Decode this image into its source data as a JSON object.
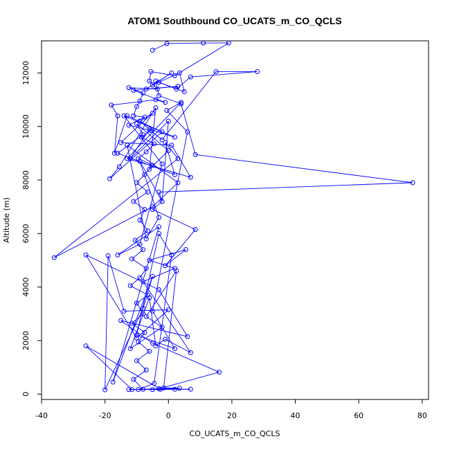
{
  "chart_data": {
    "type": "scatter",
    "title": "ATOM1 Southbound CO_UCATS_m_CO_QCLS",
    "xlabel": "CO_UCATS_m_CO_QCLS",
    "ylabel": "Altitude (m)",
    "xlim": [
      -40,
      82
    ],
    "ylim": [
      -200,
      13200
    ],
    "x_ticks": [
      -40,
      -20,
      0,
      20,
      40,
      60,
      80
    ],
    "y_ticks": [
      0,
      2000,
      4000,
      6000,
      8000,
      10000,
      12000
    ],
    "series": [
      {
        "name": "CO_UCATS_m_CO_QCLS",
        "color": "#0000ff",
        "marker": "open-circle",
        "connected": true,
        "points": [
          [
            -5,
            12850
          ],
          [
            -0.5,
            13100
          ],
          [
            11,
            13120
          ],
          [
            19,
            13120
          ],
          [
            2,
            11900
          ],
          [
            -5.5,
            12050
          ],
          [
            -6,
            11700
          ],
          [
            -3.5,
            11400
          ],
          [
            -12.5,
            11450
          ],
          [
            -8,
            11250
          ],
          [
            -9,
            10950
          ],
          [
            -10,
            10750
          ],
          [
            -11,
            10400
          ],
          [
            -7.5,
            10350
          ],
          [
            -12.5,
            10050
          ],
          [
            -5.5,
            9850
          ],
          [
            -8.5,
            9600
          ],
          [
            -4.5,
            9350
          ],
          [
            -7,
            9050
          ],
          [
            -9.5,
            8800
          ],
          [
            -5,
            8550
          ],
          [
            -7.5,
            8200
          ],
          [
            -10,
            7900
          ],
          [
            -6.5,
            7550
          ],
          [
            -11,
            7200
          ],
          [
            -7.5,
            6900
          ],
          [
            -9,
            6500
          ],
          [
            -6.5,
            6100
          ],
          [
            -10.5,
            5750
          ],
          [
            -8,
            5400
          ],
          [
            -11.5,
            5050
          ],
          [
            -7,
            4700
          ],
          [
            -9,
            4350
          ],
          [
            -12,
            4050
          ],
          [
            -6.5,
            3700
          ],
          [
            -10,
            3400
          ],
          [
            -8,
            3000
          ],
          [
            -11.5,
            2650
          ],
          [
            -7.5,
            2300
          ],
          [
            -9.5,
            1950
          ],
          [
            -6,
            1600
          ],
          [
            -10,
            1250
          ],
          [
            -7,
            900
          ],
          [
            -11,
            550
          ],
          [
            -8,
            180
          ],
          [
            -12.5,
            170
          ],
          [
            -5,
            170
          ],
          [
            2,
            180
          ],
          [
            7,
            180
          ],
          [
            -3,
            200
          ],
          [
            16,
            820
          ],
          [
            -5,
            1900
          ],
          [
            -15,
            2750
          ],
          [
            6,
            2150
          ],
          [
            -3,
            3900
          ],
          [
            -26,
            5200
          ],
          [
            -10,
            2100
          ],
          [
            0,
            3150
          ],
          [
            -14,
            3100
          ],
          [
            -19,
            5170
          ],
          [
            -20,
            160
          ],
          [
            -8,
            3200
          ],
          [
            -5,
            4400
          ],
          [
            -17.5,
            450
          ],
          [
            -3,
            6250
          ],
          [
            -16,
            5200
          ],
          [
            -9,
            5600
          ],
          [
            -2,
            8600
          ],
          [
            -14,
            10400
          ],
          [
            2,
            9600
          ],
          [
            -6,
            9900
          ],
          [
            -12,
            8800
          ],
          [
            0,
            10200
          ],
          [
            -2,
            7200
          ],
          [
            -9,
            8700
          ],
          [
            -3,
            6600
          ],
          [
            -7,
            5800
          ],
          [
            -13,
            9300
          ],
          [
            3,
            7900
          ],
          [
            -5,
            7000
          ],
          [
            -36,
            5100
          ],
          [
            3,
            8800
          ],
          [
            -1,
            9400
          ],
          [
            2,
            8200
          ],
          [
            -16,
            9000
          ],
          [
            -8,
            9700
          ],
          [
            -10,
            10100
          ],
          [
            0,
            9100
          ],
          [
            -6,
            8400
          ],
          [
            -4,
            10700
          ],
          [
            -15.5,
            8500
          ],
          [
            -18.5,
            8050
          ],
          [
            -2,
            9800
          ],
          [
            -13,
            10400
          ],
          [
            -17,
            9000
          ],
          [
            -16,
            10400
          ],
          [
            -18,
            10800
          ],
          [
            -4,
            11000
          ],
          [
            -1,
            10900
          ],
          [
            -11,
            11350
          ],
          [
            3,
            11500
          ],
          [
            -7,
            11400
          ],
          [
            1,
            12000
          ],
          [
            -5,
            11550
          ],
          [
            3.5,
            12000
          ],
          [
            5,
            11300
          ],
          [
            -4,
            11700
          ],
          [
            -3,
            11150
          ],
          [
            4,
            10850
          ],
          [
            8.5,
            8950
          ],
          [
            77,
            7900
          ],
          [
            -3,
            7550
          ],
          [
            -2,
            7200
          ],
          [
            -5,
            6900
          ],
          [
            8.5,
            6150
          ],
          [
            -1,
            4800
          ],
          [
            5.5,
            5400
          ],
          [
            -6,
            5000
          ],
          [
            2,
            4700
          ],
          [
            -8,
            4200
          ],
          [
            7,
            1550
          ],
          [
            -1,
            2050
          ],
          [
            -4,
            1800
          ],
          [
            -6,
            3600
          ],
          [
            -12,
            1700
          ],
          [
            -2,
            2500
          ],
          [
            -7,
            2900
          ],
          [
            2.5,
            4600
          ],
          [
            -1.5,
            230
          ],
          [
            3.5,
            220
          ],
          [
            -11.5,
            170
          ],
          [
            -26,
            1800
          ],
          [
            -2.5,
            180
          ],
          [
            -9.5,
            170
          ],
          [
            -4.5,
            400
          ],
          [
            1,
            5200
          ],
          [
            -3,
            6000
          ],
          [
            -10,
            2200
          ],
          [
            2,
            1700
          ],
          [
            -5,
            3100
          ],
          [
            6,
            9800
          ],
          [
            -0.5,
            10600
          ],
          [
            4,
            10900
          ],
          [
            -13,
            8800
          ],
          [
            7,
            8100
          ],
          [
            1,
            9300
          ],
          [
            -15,
            9400
          ],
          [
            -5,
            10500
          ],
          [
            -9,
            10200
          ],
          [
            -2,
            9500
          ],
          [
            15,
            12050
          ],
          [
            28,
            12050
          ],
          [
            7,
            11850
          ],
          [
            2.5,
            11400
          ],
          [
            -3,
            11650
          ]
        ]
      }
    ]
  }
}
